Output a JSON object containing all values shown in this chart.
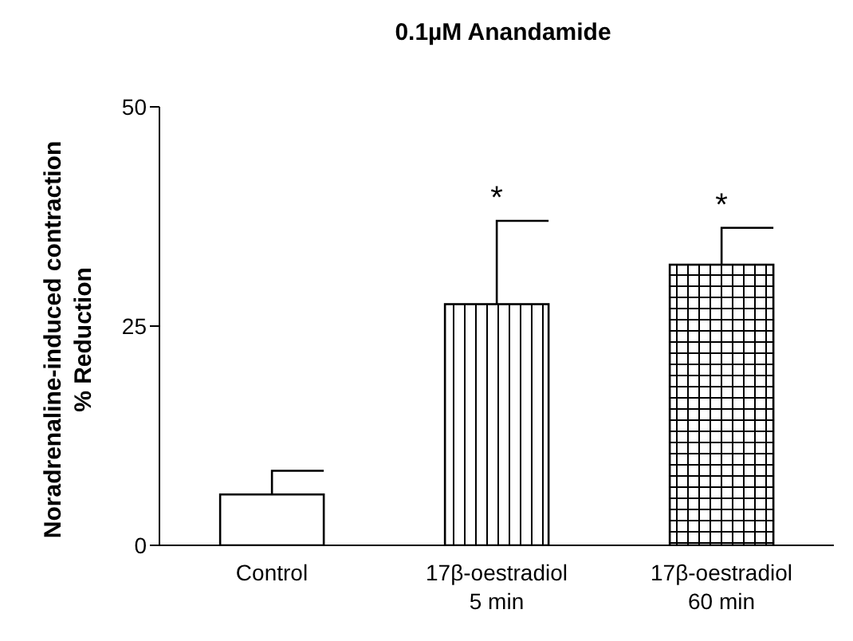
{
  "chart_data": {
    "type": "bar",
    "title": "0.1µM Anandamide",
    "ylabel": "Noradrenaline-induced contraction\n% Reduction",
    "categories": [
      "Control",
      "17β-oestradiol\n5 min",
      "17β-oestradiol\n60 min"
    ],
    "values": [
      5.8,
      27.5,
      32
    ],
    "errors": [
      [
        5.8,
        8.5
      ],
      [
        27.5,
        37
      ],
      [
        32,
        36.2
      ]
    ],
    "color": "#000000",
    "ylim": [
      0,
      50
    ],
    "yticks": [
      0,
      25,
      50
    ],
    "grid": false,
    "legend": false,
    "annotations": [
      {
        "text": "*",
        "x": "17β-oestradiol\n5 min",
        "y": 37
      },
      {
        "text": "*",
        "x": "17β-oestradiol\n60 min",
        "y": 36.2
      }
    ]
  }
}
